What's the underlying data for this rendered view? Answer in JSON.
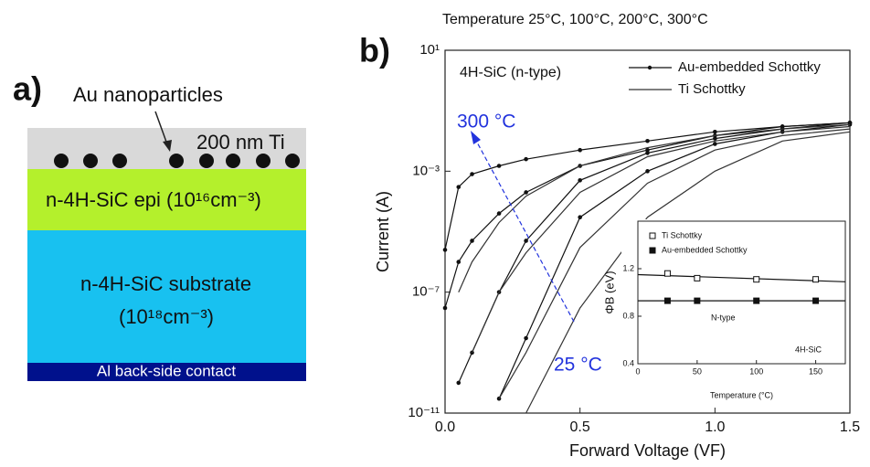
{
  "panel_a": {
    "label": "a)",
    "particles_label": "Au nanoparticles",
    "layers": {
      "ti": "200 nm Ti",
      "epi": "n-4H-SiC epi (10¹⁶cm⁻³)",
      "substrate": [
        "n-4H-SiC substrate",
        "(10¹⁸cm⁻³)"
      ],
      "contact": "Al back-side contact"
    }
  },
  "chart_data": [
    {
      "type": "line",
      "label": "b)",
      "title": "Temperature 25°C, 100°C, 200°C, 300°C",
      "annotations": {
        "material": "4H-SiC (n-type)",
        "high": "300 °C",
        "low": "25 °C"
      },
      "xlabel": "Forward Voltage (VF)",
      "ylabel": "Current (A)",
      "x": [
        0,
        0.05,
        0.1,
        0.2,
        0.3,
        0.5,
        0.75,
        1.0,
        1.25,
        1.5
      ],
      "xlim": [
        0,
        1.5
      ],
      "xticks": [
        {
          "value": 0,
          "label": "0.0"
        },
        0.5,
        {
          "value": 1,
          "label": "1.0"
        },
        1.5
      ],
      "log_y": true,
      "ylim": [
        1e-11,
        10
      ],
      "yticks": [
        {
          "value": 1e-11,
          "label": "10⁻¹¹"
        },
        {
          "value": 1e-07,
          "label": "10⁻⁷"
        },
        {
          "value": 0.001,
          "label": "10⁻³"
        },
        {
          "value": 10,
          "label": "10¹"
        }
      ],
      "legend": [
        {
          "name": "Au-embedded Schottky",
          "marker": true,
          "color": "#111111"
        },
        {
          "name": "Ti Schottky",
          "marker": false,
          "color": "#333333"
        }
      ],
      "series": [
        {
          "legend": 0,
          "values": [
            2.5e-06,
            0.0003,
            0.0008,
            0.0015,
            0.0025,
            0.005,
            0.01,
            0.02,
            0.03,
            0.04
          ]
        },
        {
          "legend": 0,
          "values": [
            3e-08,
            1e-06,
            5e-06,
            4e-05,
            0.0002,
            0.0015,
            0.005,
            0.015,
            0.03,
            0.04
          ]
        },
        {
          "legend": 0,
          "values": [
            null,
            1e-10,
            1e-09,
            1e-07,
            5e-06,
            0.0005,
            0.004,
            0.012,
            0.025,
            0.04
          ]
        },
        {
          "legend": 0,
          "values": [
            null,
            null,
            null,
            3e-11,
            3e-09,
            3e-05,
            0.001,
            0.008,
            0.02,
            0.035
          ]
        },
        {
          "legend": 1,
          "values": [
            null,
            1e-07,
            1e-06,
            2e-05,
            0.00015,
            0.0015,
            0.006,
            0.015,
            0.025,
            0.035
          ]
        },
        {
          "legend": 1,
          "values": [
            null,
            null,
            1e-09,
            1e-07,
            2e-06,
            0.0002,
            0.003,
            0.01,
            0.02,
            0.03
          ]
        },
        {
          "legend": 1,
          "values": [
            null,
            null,
            null,
            3e-11,
            1e-09,
            3e-06,
            0.0004,
            0.005,
            0.015,
            0.025
          ]
        },
        {
          "legend": 1,
          "values": [
            null,
            null,
            null,
            null,
            1e-11,
            3e-08,
            3e-05,
            0.001,
            0.01,
            0.02
          ]
        }
      ]
    },
    {
      "type": "scatter",
      "xlabel": "Temperature (°C)",
      "ylabel": "ΦB (eV)",
      "notes": {
        "doping": "N-type",
        "material": "4H-SiC"
      },
      "x": [
        25,
        50,
        100,
        150
      ],
      "xlim": [
        0,
        175
      ],
      "xticks": [
        0,
        50,
        100,
        150
      ],
      "ylim": [
        0.4,
        1.6
      ],
      "yticks": [
        0.4,
        0.8,
        1.2
      ],
      "series": [
        {
          "name": "Ti Schottky",
          "marker": "open",
          "values": [
            1.16,
            1.12,
            1.11,
            1.11
          ],
          "fit": [
            1.15,
            1.09
          ]
        },
        {
          "name": "Au-embedded Schottky",
          "marker": "filled",
          "values": [
            0.93,
            0.93,
            0.93,
            0.93
          ],
          "fit": [
            0.93,
            0.93
          ]
        }
      ]
    }
  ]
}
